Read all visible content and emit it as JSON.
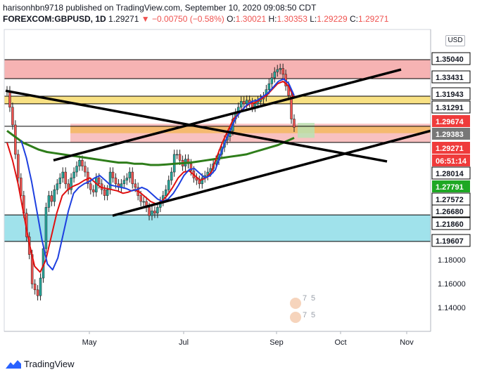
{
  "header": {
    "line1": "harisonhbn9718 published on TradingView.com, September 10, 2020 09:08:50 CDT",
    "symbol": "FOREXCOM:GBPUSD, 1D",
    "last": "1.29271",
    "arrow": "▼",
    "change": "−0.00750 (−0.58%)",
    "o_label": "O:",
    "o": "1.30021",
    "h_label": "H:",
    "h": "1.30353",
    "l_label": "L:",
    "l": "1.29229",
    "c_label": "C:",
    "c": "1.29271"
  },
  "currency_button": "USD",
  "footer": {
    "brand": "TradingView"
  },
  "colors": {
    "up": "#26a69a",
    "down": "#ef5350",
    "ema_fast": "#1e40e0",
    "ema_red": "#e01010",
    "sma_green": "#2e7d1a",
    "trendline": "#000000"
  },
  "chart_data": {
    "type": "candlestick",
    "x_ticks": [
      "May",
      "Jul",
      "Sep",
      "Oct",
      "Nov"
    ],
    "y_ticks": [
      "1.18000",
      "1.16000",
      "1.14000"
    ],
    "price_labels": [
      {
        "text": "1.35040",
        "style": "white"
      },
      {
        "text": "1.33431",
        "style": "white"
      },
      {
        "text": "1.31943",
        "style": "white"
      },
      {
        "text": "1.31291",
        "style": "white"
      },
      {
        "text": "1.29674",
        "style": "red"
      },
      {
        "text": "1.29383",
        "style": "gray"
      },
      {
        "text": "1.29271",
        "style": "red"
      },
      {
        "text": "06:51:14",
        "style": "red"
      },
      {
        "text": "1.28014",
        "style": "white"
      },
      {
        "text": "1.27791",
        "style": "green"
      },
      {
        "text": "1.27572",
        "style": "white"
      },
      {
        "text": "1.26680",
        "style": "white"
      },
      {
        "text": "1.21860",
        "style": "white"
      },
      {
        "text": "1.19607",
        "style": "white"
      }
    ],
    "zones": [
      {
        "name": "resistance-red",
        "from": 1.33431,
        "to": 1.3504,
        "color": "#f4a6a6"
      },
      {
        "name": "resistance-yellow",
        "from": 1.31291,
        "to": 1.31943,
        "color": "#f7dc6f"
      },
      {
        "name": "support-orange",
        "from": 1.288,
        "to": 1.294,
        "color": "#f4b860"
      },
      {
        "name": "support-pink",
        "from": 1.28014,
        "to": 1.296,
        "color": "#f7b6b6"
      },
      {
        "name": "support-cyan",
        "from": 1.19607,
        "to": 1.2186,
        "color": "#8fdde8"
      }
    ],
    "horizontal_lines": [
      1.3504,
      1.33431,
      1.31943,
      1.31291,
      1.29383,
      1.28014,
      1.2186,
      1.19607
    ],
    "close": [
      1.324,
      1.31,
      1.295,
      1.27,
      1.25,
      1.235,
      1.22,
      1.2,
      1.185,
      1.16,
      1.155,
      1.15,
      1.165,
      1.19,
      1.225,
      1.235,
      1.23,
      1.24,
      1.245,
      1.25,
      1.255,
      1.245,
      1.24,
      1.25,
      1.255,
      1.26,
      1.265,
      1.26,
      1.255,
      1.245,
      1.24,
      1.238,
      1.25,
      1.245,
      1.24,
      1.235,
      1.24,
      1.255,
      1.25,
      1.245,
      1.242,
      1.245,
      1.248,
      1.25,
      1.255,
      1.245,
      1.242,
      1.235,
      1.23,
      1.23,
      1.225,
      1.218,
      1.222,
      1.22,
      1.225,
      1.23,
      1.235,
      1.24,
      1.248,
      1.255,
      1.27,
      1.27,
      1.265,
      1.26,
      1.266,
      1.262,
      1.256,
      1.25,
      1.248,
      1.245,
      1.25,
      1.252,
      1.255,
      1.258,
      1.262,
      1.265,
      1.27,
      1.276,
      1.282,
      1.285,
      1.29,
      1.3,
      1.305,
      1.31,
      1.315,
      1.313,
      1.316,
      1.314,
      1.31,
      1.313,
      1.315,
      1.317,
      1.319,
      1.325,
      1.33,
      1.335,
      1.34,
      1.342,
      1.343,
      1.338,
      1.328,
      1.32,
      1.3,
      1.293
    ],
    "ema_fast": [
      1.28,
      1.265,
      1.245,
      1.22,
      1.195,
      1.175,
      1.17,
      1.18,
      1.2,
      1.22,
      1.235,
      1.24,
      1.243,
      1.245,
      1.248,
      1.25,
      1.246,
      1.242,
      1.241,
      1.24,
      1.239,
      1.237,
      1.238,
      1.24,
      1.238,
      1.234,
      1.23,
      1.228,
      1.23,
      1.235,
      1.242,
      1.25,
      1.255,
      1.256,
      1.252,
      1.248,
      1.25,
      1.255,
      1.268,
      1.28,
      1.29,
      1.3,
      1.305,
      1.31,
      1.313,
      1.314,
      1.317,
      1.32,
      1.325,
      1.33,
      1.332,
      1.328,
      1.318
    ],
    "sma_green": [
      1.29,
      1.285,
      1.28,
      1.277,
      1.274,
      1.272,
      1.271,
      1.27,
      1.269,
      1.268,
      1.267,
      1.266,
      1.265,
      1.264,
      1.263,
      1.263,
      1.262,
      1.262,
      1.261,
      1.261,
      1.2615,
      1.262,
      1.2625,
      1.263,
      1.264,
      1.265,
      1.266,
      1.267,
      1.268,
      1.269,
      1.27,
      1.272,
      1.274,
      1.276,
      1.278,
      1.281,
      1.284
    ],
    "trendlines": [
      {
        "name": "falling-resistance",
        "from": [
          "Feb",
          1.324
        ],
        "to": [
          "Nov",
          1.264
        ]
      },
      {
        "name": "rising-channel-upper",
        "from": [
          "Mar",
          1.265
        ],
        "to": [
          "Oct",
          1.342
        ]
      },
      {
        "name": "rising-channel-lower",
        "from": [
          "May",
          1.218
        ],
        "to": [
          "Nov",
          1.29
        ]
      }
    ],
    "watermark_glyphs": [
      "7",
      "5",
      "7",
      "5"
    ]
  }
}
